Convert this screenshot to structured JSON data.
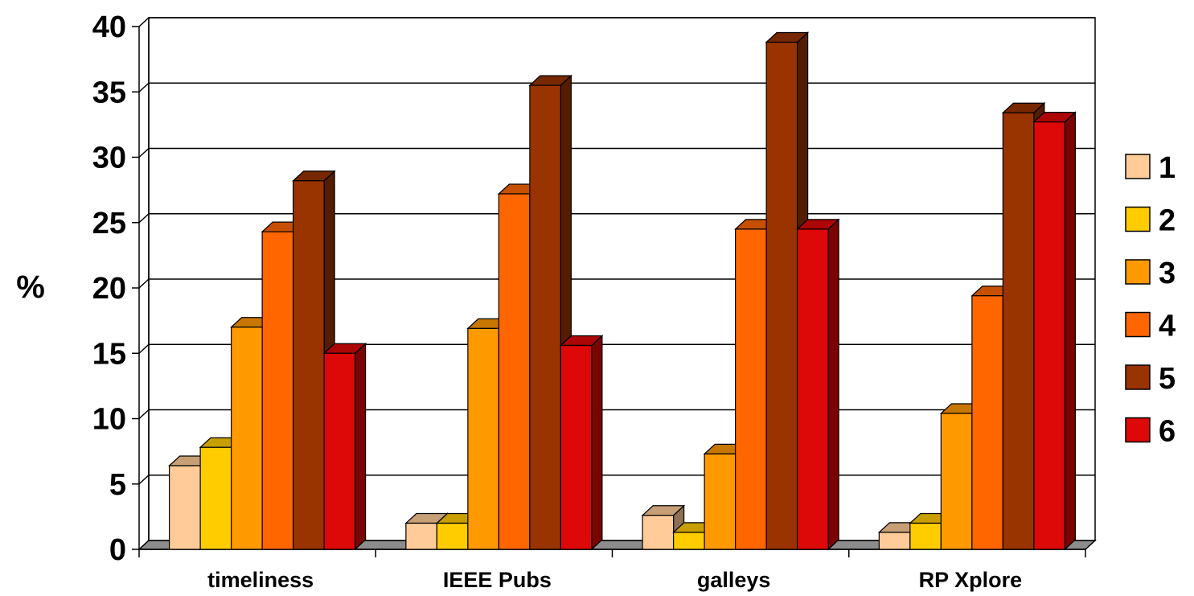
{
  "chart_data": {
    "type": "bar",
    "ylabel": "%",
    "xlabel": "",
    "ylim": [
      0,
      40
    ],
    "yticks": [
      0,
      5,
      10,
      15,
      20,
      25,
      30,
      35,
      40
    ],
    "grid": true,
    "legend_position": "right",
    "categories": [
      "timeliness",
      "IEEE Pubs",
      "galleys",
      "RP Xplore"
    ],
    "series": [
      {
        "name": "1",
        "color": "#FFCC99",
        "values": [
          6.4,
          2.0,
          2.6,
          1.3
        ]
      },
      {
        "name": "2",
        "color": "#FFCC00",
        "values": [
          7.8,
          2.0,
          1.3,
          2.0
        ]
      },
      {
        "name": "3",
        "color": "#FF9900",
        "values": [
          17.0,
          16.9,
          7.3,
          10.4
        ]
      },
      {
        "name": "4",
        "color": "#FF6600",
        "values": [
          24.3,
          27.2,
          24.5,
          19.4
        ]
      },
      {
        "name": "5",
        "color": "#993300",
        "values": [
          28.2,
          35.5,
          38.8,
          33.4
        ]
      },
      {
        "name": "6",
        "color": "#DD0808",
        "values": [
          15.0,
          15.6,
          24.5,
          32.7
        ]
      }
    ]
  }
}
